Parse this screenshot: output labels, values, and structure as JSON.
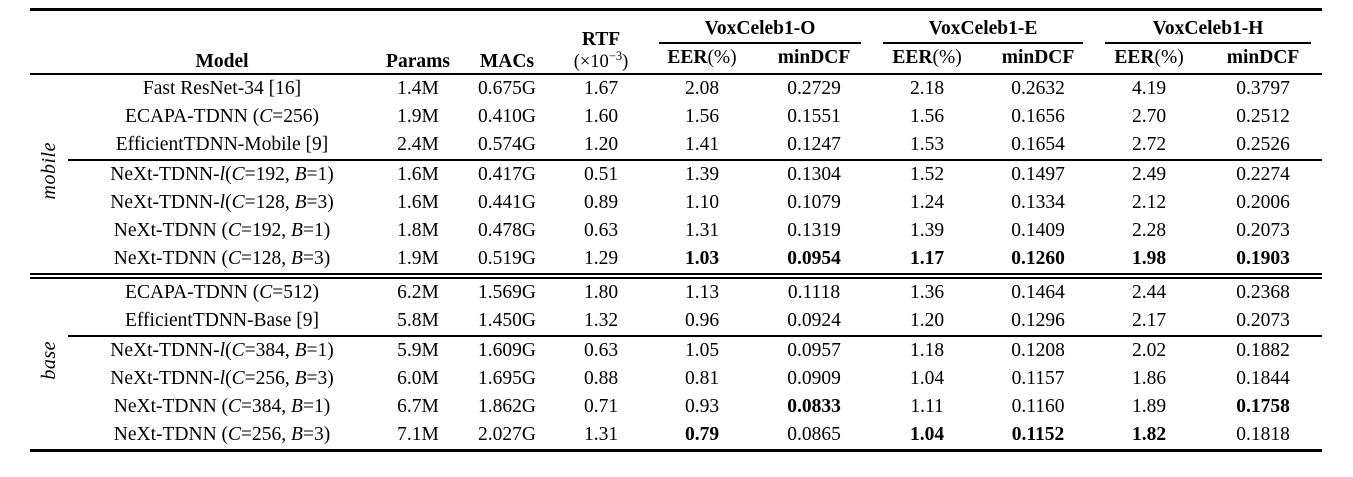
{
  "header": {
    "model": "Model",
    "params": "Params",
    "macs": "MACs",
    "rtf": "RTF",
    "rtf_unit_prefix": "(×10",
    "rtf_unit_sup": "−3",
    "rtf_unit_suffix": ")",
    "groups": [
      {
        "label": "VoxCeleb1-O"
      },
      {
        "label": "VoxCeleb1-E"
      },
      {
        "label": "VoxCeleb1-H"
      }
    ],
    "eer_bold": "EER",
    "eer_paren": "(%)",
    "mindcf": "minDCF"
  },
  "sections": [
    {
      "label": "mobile",
      "subgroups": [
        {
          "rows": [
            {
              "model": [
                {
                  "t": "Fast ResNet-34 [16]"
                }
              ],
              "params": "1.4M",
              "macs": "0.675G",
              "rtf": "1.67",
              "metrics": [
                "2.08",
                "0.2729",
                "2.18",
                "0.2632",
                "4.19",
                "0.3797"
              ],
              "bold": []
            },
            {
              "model": [
                {
                  "t": "ECAPA-TDNN ("
                },
                {
                  "t": "C",
                  "i": true
                },
                {
                  "t": "=256)"
                }
              ],
              "params": "1.9M",
              "macs": "0.410G",
              "rtf": "1.60",
              "metrics": [
                "1.56",
                "0.1551",
                "1.56",
                "0.1656",
                "2.70",
                "0.2512"
              ],
              "bold": []
            },
            {
              "model": [
                {
                  "t": "EfficientTDNN-Mobile [9]"
                }
              ],
              "params": "2.4M",
              "macs": "0.574G",
              "rtf": "1.20",
              "metrics": [
                "1.41",
                "0.1247",
                "1.53",
                "0.1654",
                "2.72",
                "0.2526"
              ],
              "bold": []
            }
          ]
        },
        {
          "rows": [
            {
              "model": [
                {
                  "t": "NeXt-TDNN-"
                },
                {
                  "t": "l",
                  "i": true
                },
                {
                  "t": "("
                },
                {
                  "t": "C",
                  "i": true
                },
                {
                  "t": "=192, "
                },
                {
                  "t": "B",
                  "i": true
                },
                {
                  "t": "=1)"
                }
              ],
              "params": "1.6M",
              "macs": "0.417G",
              "rtf": "0.51",
              "metrics": [
                "1.39",
                "0.1304",
                "1.52",
                "0.1497",
                "2.49",
                "0.2274"
              ],
              "bold": []
            },
            {
              "model": [
                {
                  "t": "NeXt-TDNN-"
                },
                {
                  "t": "l",
                  "i": true
                },
                {
                  "t": "("
                },
                {
                  "t": "C",
                  "i": true
                },
                {
                  "t": "=128, "
                },
                {
                  "t": "B",
                  "i": true
                },
                {
                  "t": "=3)"
                }
              ],
              "params": "1.6M",
              "macs": "0.441G",
              "rtf": "0.89",
              "metrics": [
                "1.10",
                "0.1079",
                "1.24",
                "0.1334",
                "2.12",
                "0.2006"
              ],
              "bold": []
            },
            {
              "model": [
                {
                  "t": "NeXt-TDNN ("
                },
                {
                  "t": "C",
                  "i": true
                },
                {
                  "t": "=192, "
                },
                {
                  "t": "B",
                  "i": true
                },
                {
                  "t": "=1)"
                }
              ],
              "params": "1.8M",
              "macs": "0.478G",
              "rtf": "0.63",
              "metrics": [
                "1.31",
                "0.1319",
                "1.39",
                "0.1409",
                "2.28",
                "0.2073"
              ],
              "bold": []
            },
            {
              "model": [
                {
                  "t": "NeXt-TDNN ("
                },
                {
                  "t": "C",
                  "i": true
                },
                {
                  "t": "=128, "
                },
                {
                  "t": "B",
                  "i": true
                },
                {
                  "t": "=3)"
                }
              ],
              "params": "1.9M",
              "macs": "0.519G",
              "rtf": "1.29",
              "metrics": [
                "1.03",
                "0.0954",
                "1.17",
                "0.1260",
                "1.98",
                "0.1903"
              ],
              "bold": [
                0,
                1,
                2,
                3,
                4,
                5
              ]
            }
          ]
        }
      ]
    },
    {
      "label": "base",
      "subgroups": [
        {
          "rows": [
            {
              "model": [
                {
                  "t": "ECAPA-TDNN ("
                },
                {
                  "t": "C",
                  "i": true
                },
                {
                  "t": "=512)"
                }
              ],
              "params": "6.2M",
              "macs": "1.569G",
              "rtf": "1.80",
              "metrics": [
                "1.13",
                "0.1118",
                "1.36",
                "0.1464",
                "2.44",
                "0.2368"
              ],
              "bold": []
            },
            {
              "model": [
                {
                  "t": "EfficientTDNN-Base [9]"
                }
              ],
              "params": "5.8M",
              "macs": "1.450G",
              "rtf": "1.32",
              "metrics": [
                "0.96",
                "0.0924",
                "1.20",
                "0.1296",
                "2.17",
                "0.2073"
              ],
              "bold": []
            }
          ]
        },
        {
          "rows": [
            {
              "model": [
                {
                  "t": "NeXt-TDNN-"
                },
                {
                  "t": "l",
                  "i": true
                },
                {
                  "t": "("
                },
                {
                  "t": "C",
                  "i": true
                },
                {
                  "t": "=384, "
                },
                {
                  "t": "B",
                  "i": true
                },
                {
                  "t": "=1)"
                }
              ],
              "params": "5.9M",
              "macs": "1.609G",
              "rtf": "0.63",
              "metrics": [
                "1.05",
                "0.0957",
                "1.18",
                "0.1208",
                "2.02",
                "0.1882"
              ],
              "bold": []
            },
            {
              "model": [
                {
                  "t": "NeXt-TDNN-"
                },
                {
                  "t": "l",
                  "i": true
                },
                {
                  "t": "("
                },
                {
                  "t": "C",
                  "i": true
                },
                {
                  "t": "=256, "
                },
                {
                  "t": "B",
                  "i": true
                },
                {
                  "t": "=3)"
                }
              ],
              "params": "6.0M",
              "macs": "1.695G",
              "rtf": "0.88",
              "metrics": [
                "0.81",
                "0.0909",
                "1.04",
                "0.1157",
                "1.86",
                "0.1844"
              ],
              "bold": []
            },
            {
              "model": [
                {
                  "t": "NeXt-TDNN ("
                },
                {
                  "t": "C",
                  "i": true
                },
                {
                  "t": "=384, "
                },
                {
                  "t": "B",
                  "i": true
                },
                {
                  "t": "=1)"
                }
              ],
              "params": "6.7M",
              "macs": "1.862G",
              "rtf": "0.71",
              "metrics": [
                "0.93",
                "0.0833",
                "1.11",
                "0.1160",
                "1.89",
                "0.1758"
              ],
              "bold": [
                1,
                5
              ]
            },
            {
              "model": [
                {
                  "t": "NeXt-TDNN ("
                },
                {
                  "t": "C",
                  "i": true
                },
                {
                  "t": "=256, "
                },
                {
                  "t": "B",
                  "i": true
                },
                {
                  "t": "=3)"
                }
              ],
              "params": "7.1M",
              "macs": "2.027G",
              "rtf": "1.31",
              "metrics": [
                "0.79",
                "0.0865",
                "1.04",
                "0.1152",
                "1.82",
                "0.1818"
              ],
              "bold": [
                0,
                2,
                3,
                4
              ]
            }
          ]
        }
      ]
    }
  ]
}
